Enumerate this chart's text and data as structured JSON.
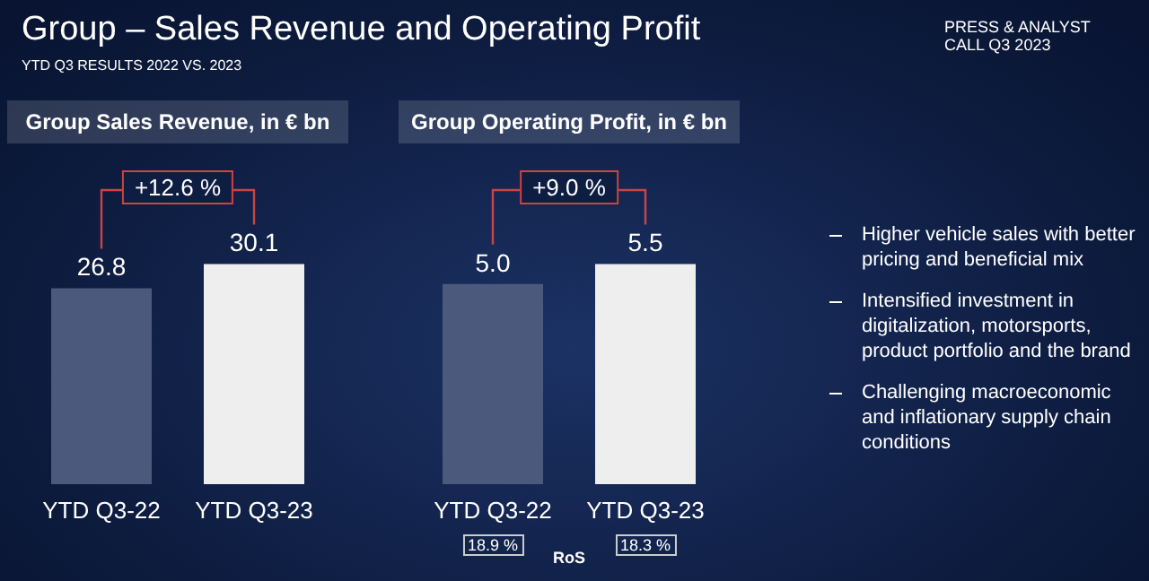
{
  "chart_data": [
    {
      "type": "bar",
      "title": "Group Sales Revenue, in € bn",
      "categories": [
        "YTD Q3-22",
        "YTD Q3-23"
      ],
      "values": [
        26.8,
        30.1
      ],
      "colors": [
        "#4b5a7c",
        "#eeeeee"
      ],
      "data_labels": true,
      "annotations": [
        "+12.6 %"
      ]
    },
    {
      "type": "bar",
      "title": "Group Operating Profit, in € bn",
      "categories": [
        "YTD Q3-22",
        "YTD Q3-23"
      ],
      "values": [
        5.0,
        5.5
      ],
      "colors": [
        "#4b5a7c",
        "#eeeeee"
      ],
      "value_labels": [
        "5.0",
        "5.5"
      ],
      "annotations": [
        "+9.0 %",
        "18.9 %",
        "RoS",
        "18.3 %"
      ]
    },
    {
      "type": "other",
      "title": "Group – Sales Revenue and Operating Profit",
      "subtitle": "YTD Q3 RESULTS 2022 VS. 2023",
      "annotations": [
        "PRESS & ANALYST CALL Q3 2023",
        "Higher vehicle sales with better pricing and beneficial mix",
        "Intensified investment in digitalization, motorsports, product portfolio and the brand",
        "Challenging macroeconomic and inflationary supply chain conditions"
      ]
    }
  ]
}
